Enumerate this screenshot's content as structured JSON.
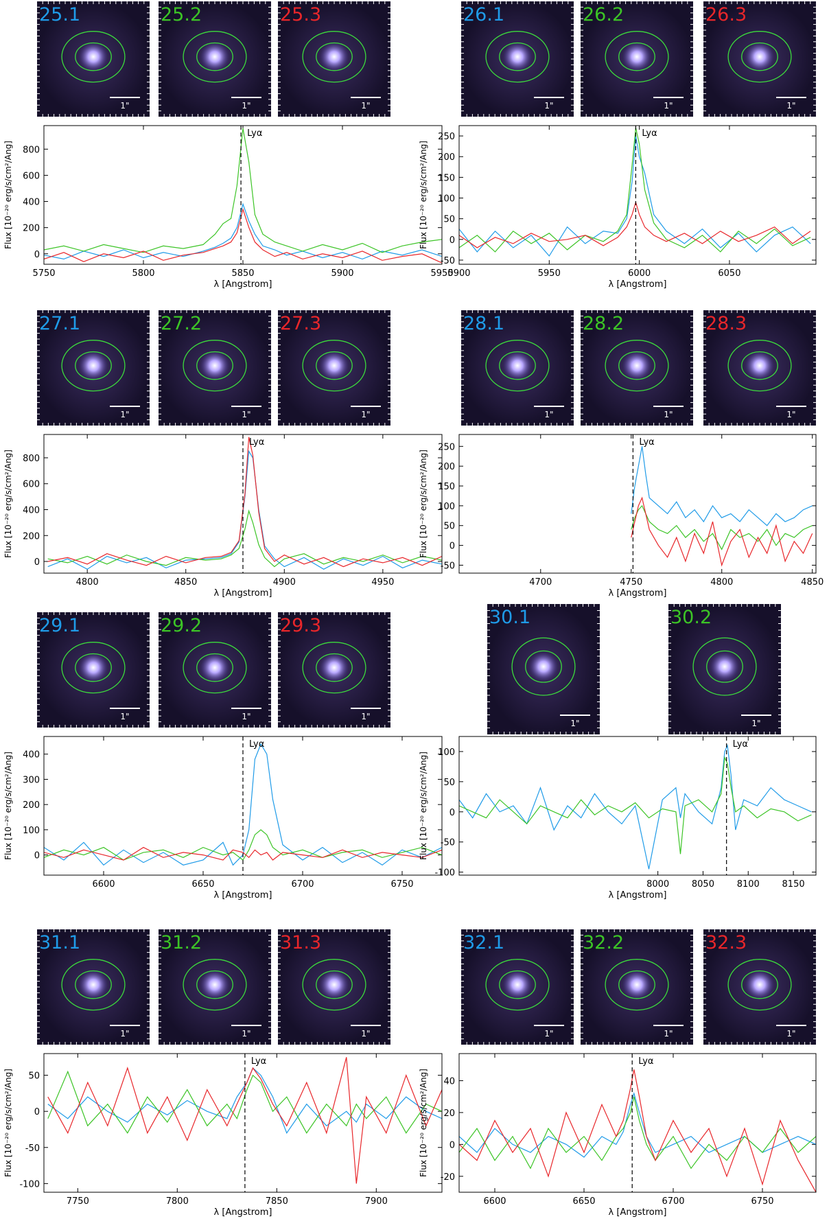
{
  "chart_data": [
    {
      "type": "line",
      "xlabel": "λ [Angstrom]",
      "ylabel": "Flux [10⁻²⁰ erg/s/cm²/Ang]",
      "scale_label": "1\"",
      "xlim": [
        5750,
        5950
      ],
      "xticks": [
        5750,
        5800,
        5850,
        5900,
        5950
      ],
      "ylim": [
        -80,
        980
      ],
      "yticks": [
        0,
        200,
        400,
        600,
        800
      ],
      "annotations": [
        {
          "text": "Lyα",
          "x": 5849
        }
      ],
      "x": [
        5750,
        5760,
        5770,
        5780,
        5790,
        5800,
        5810,
        5820,
        5830,
        5836,
        5840,
        5844,
        5847,
        5850,
        5853,
        5856,
        5860,
        5866,
        5872,
        5880,
        5890,
        5900,
        5910,
        5920,
        5930,
        5940,
        5950
      ],
      "series": [
        {
          "name": "25.1",
          "color": "#1f9be8",
          "values": [
            -10,
            -40,
            20,
            -20,
            30,
            -30,
            10,
            -20,
            20,
            50,
            80,
            120,
            200,
            380,
            250,
            150,
            60,
            30,
            -10,
            20,
            -30,
            10,
            -40,
            20,
            -10,
            30,
            -20
          ]
        },
        {
          "name": "25.2",
          "color": "#3cc426",
          "values": [
            30,
            60,
            20,
            70,
            40,
            10,
            60,
            40,
            70,
            150,
            230,
            270,
            520,
            960,
            700,
            300,
            150,
            90,
            60,
            20,
            70,
            30,
            80,
            10,
            60,
            90,
            110
          ]
        },
        {
          "name": "25.3",
          "color": "#e8262a",
          "values": [
            -40,
            10,
            -60,
            0,
            -30,
            20,
            -50,
            -10,
            10,
            40,
            60,
            90,
            160,
            340,
            200,
            90,
            30,
            -20,
            10,
            -40,
            0,
            -30,
            20,
            -50,
            -20,
            0,
            -70
          ]
        }
      ]
    },
    {
      "type": "line",
      "xlabel": "λ [Angstrom]",
      "ylabel": "Flux [10⁻²⁰ erg/s/cm²/Ang]",
      "scale_label": "1\"",
      "xlim": [
        5900,
        6098
      ],
      "xticks": [
        5900,
        5950,
        6000,
        6050
      ],
      "ylim": [
        -60,
        275
      ],
      "yticks": [
        -50,
        0,
        50,
        100,
        150,
        200,
        250
      ],
      "annotations": [
        {
          "text": "Lyα",
          "x": 5998
        }
      ],
      "x": [
        5900,
        5910,
        5920,
        5930,
        5940,
        5950,
        5960,
        5970,
        5980,
        5988,
        5993,
        5996,
        5998,
        6000,
        6003,
        6008,
        6015,
        6025,
        6035,
        6045,
        6055,
        6065,
        6075,
        6085,
        6095
      ],
      "series": [
        {
          "name": "26.1",
          "color": "#1f9be8",
          "values": [
            25,
            -30,
            20,
            -20,
            10,
            -40,
            30,
            -10,
            20,
            15,
            50,
            140,
            250,
            200,
            160,
            60,
            20,
            -10,
            25,
            -20,
            15,
            -30,
            10,
            30,
            -10
          ]
        },
        {
          "name": "26.2",
          "color": "#3cc426",
          "values": [
            -20,
            10,
            -30,
            20,
            -10,
            15,
            -25,
            10,
            -5,
            20,
            60,
            180,
            270,
            230,
            120,
            40,
            0,
            -20,
            10,
            -30,
            20,
            -10,
            25,
            -15,
            5
          ]
        },
        {
          "name": "26.3",
          "color": "#e8262a",
          "values": [
            10,
            -20,
            5,
            -10,
            15,
            -5,
            0,
            10,
            -15,
            5,
            30,
            60,
            90,
            60,
            30,
            10,
            -5,
            15,
            -10,
            20,
            -5,
            10,
            30,
            -10,
            20
          ]
        }
      ]
    },
    {
      "type": "line",
      "xlabel": "λ [Angstrom]",
      "ylabel": "Flux [10⁻²⁰ erg/s/cm²/Ang]",
      "scale_label": "1\"",
      "xlim": [
        4778,
        4980
      ],
      "xticks": [
        4800,
        4850,
        4900,
        4950
      ],
      "ylim": [
        -90,
        980
      ],
      "yticks": [
        0,
        200,
        400,
        600,
        800
      ],
      "annotations": [
        {
          "text": "Lyα",
          "x": 4879
        }
      ],
      "x": [
        4780,
        4790,
        4800,
        4810,
        4820,
        4830,
        4840,
        4850,
        4860,
        4868,
        4873,
        4877,
        4880,
        4882,
        4884,
        4887,
        4890,
        4895,
        4900,
        4910,
        4920,
        4930,
        4940,
        4950,
        4960,
        4970,
        4980
      ],
      "series": [
        {
          "name": "27.1",
          "color": "#1f9be8",
          "values": [
            -40,
            20,
            -60,
            40,
            -10,
            30,
            -50,
            10,
            20,
            30,
            60,
            150,
            500,
            850,
            800,
            400,
            120,
            20,
            -40,
            30,
            -60,
            20,
            -30,
            40,
            -50,
            10,
            -20
          ]
        },
        {
          "name": "27.2",
          "color": "#3cc426",
          "values": [
            20,
            -10,
            40,
            -20,
            50,
            0,
            -30,
            30,
            10,
            20,
            50,
            100,
            250,
            390,
            300,
            130,
            30,
            -40,
            20,
            60,
            -20,
            30,
            0,
            50,
            -10,
            40,
            10
          ]
        },
        {
          "name": "27.3",
          "color": "#e8262a",
          "values": [
            0,
            30,
            -20,
            60,
            10,
            -30,
            40,
            -10,
            30,
            40,
            70,
            160,
            520,
            960,
            820,
            380,
            100,
            0,
            50,
            -20,
            30,
            -40,
            20,
            -10,
            30,
            -30,
            40
          ]
        }
      ]
    },
    {
      "type": "line",
      "xlabel": "λ [Angstrom]",
      "ylabel": "Flux [10⁻²⁰ erg/s/cm²/Ang]",
      "scale_label": "1\"",
      "xlim": [
        4655,
        4852
      ],
      "xticks": [
        4700,
        4750,
        4800,
        4850
      ],
      "ylim": [
        -70,
        280
      ],
      "yticks": [
        -50,
        0,
        50,
        100,
        150,
        200,
        250
      ],
      "annotations": [
        {
          "text": "Lyα",
          "x": 4751
        }
      ],
      "x": [
        4750,
        4752,
        4754,
        4756,
        4758,
        4760,
        4765,
        4770,
        4775,
        4780,
        4785,
        4790,
        4795,
        4800,
        4805,
        4810,
        4815,
        4820,
        4825,
        4830,
        4835,
        4840,
        4845,
        4850
      ],
      "series": [
        {
          "name": "28.1",
          "color": "#1f9be8",
          "values": [
            80,
            150,
            200,
            250,
            180,
            120,
            100,
            80,
            110,
            70,
            90,
            60,
            100,
            70,
            80,
            60,
            90,
            70,
            50,
            80,
            60,
            70,
            90,
            100
          ]
        },
        {
          "name": "28.2",
          "color": "#3cc426",
          "values": [
            40,
            70,
            90,
            100,
            80,
            60,
            40,
            30,
            50,
            20,
            40,
            10,
            30,
            -10,
            40,
            20,
            30,
            10,
            40,
            0,
            30,
            20,
            40,
            50
          ]
        },
        {
          "name": "28.3",
          "color": "#e8262a",
          "values": [
            20,
            60,
            100,
            120,
            80,
            40,
            0,
            -30,
            20,
            -40,
            30,
            -20,
            60,
            -50,
            10,
            40,
            -30,
            20,
            -20,
            50,
            -40,
            10,
            -20,
            30
          ]
        }
      ]
    },
    {
      "type": "line",
      "xlabel": "λ [Angstrom]",
      "ylabel": "Flux [10⁻²⁰ erg/s/cm²/Ang]",
      "scale_label": "1\"",
      "xlim": [
        6570,
        6770
      ],
      "xticks": [
        6600,
        6650,
        6700,
        6750
      ],
      "ylim": [
        -80,
        470
      ],
      "yticks": [
        0,
        100,
        200,
        300,
        400
      ],
      "annotations": [
        {
          "text": "Lyα",
          "x": 6670
        }
      ],
      "x": [
        6570,
        6580,
        6590,
        6600,
        6610,
        6620,
        6630,
        6640,
        6650,
        6660,
        6665,
        6670,
        6673,
        6676,
        6679,
        6682,
        6685,
        6690,
        6700,
        6710,
        6720,
        6730,
        6740,
        6750,
        6760,
        6770
      ],
      "series": [
        {
          "name": "29.1",
          "color": "#1f9be8",
          "values": [
            30,
            -20,
            50,
            -40,
            20,
            -30,
            10,
            -40,
            -20,
            50,
            -40,
            0,
            100,
            380,
            440,
            400,
            220,
            40,
            -20,
            30,
            -30,
            10,
            -40,
            20,
            -10,
            30
          ]
        },
        {
          "name": "29.2",
          "color": "#3cc426",
          "values": [
            -10,
            20,
            0,
            30,
            -20,
            10,
            20,
            -10,
            30,
            0,
            10,
            -20,
            20,
            80,
            100,
            80,
            30,
            0,
            20,
            -10,
            10,
            20,
            -10,
            10,
            30,
            0
          ]
        },
        {
          "name": "29.3",
          "color": "#e8262a",
          "values": [
            10,
            -10,
            20,
            0,
            -20,
            30,
            -10,
            10,
            0,
            -20,
            20,
            10,
            -10,
            20,
            0,
            10,
            -20,
            10,
            0,
            -10,
            20,
            -10,
            10,
            0,
            -10,
            20
          ]
        }
      ]
    },
    {
      "type": "line",
      "xlabel": "λ [Angstrom]",
      "ylabel": "Flux [10⁻²⁰ erg/s/cm²/Ang]",
      "scale_label": "1\"",
      "xlim": [
        7780,
        8175
      ],
      "xticks": [
        8000,
        8050,
        8100,
        8150
      ],
      "ylim": [
        -105,
        125
      ],
      "yticks": [
        -100,
        -50,
        0,
        50,
        100
      ],
      "annotations": [
        {
          "text": "Lyα",
          "x": 8076
        }
      ],
      "x": [
        7780,
        7795,
        7810,
        7825,
        7840,
        7855,
        7870,
        7885,
        7900,
        7915,
        7930,
        7945,
        7960,
        7975,
        7990,
        8005,
        8020,
        8025,
        8030,
        8045,
        8060,
        8070,
        8074,
        8077,
        8081,
        8086,
        8095,
        8110,
        8125,
        8140,
        8155,
        8170
      ],
      "series": [
        {
          "name": "30.1",
          "color": "#1f9be8",
          "values": [
            20,
            -10,
            30,
            0,
            10,
            -20,
            40,
            -30,
            10,
            -10,
            30,
            0,
            -20,
            10,
            -95,
            20,
            40,
            -10,
            30,
            0,
            -20,
            40,
            100,
            110,
            60,
            -30,
            20,
            10,
            40,
            20,
            10,
            0
          ]
        },
        {
          "name": "30.2",
          "color": "#3cc426",
          "values": [
            10,
            0,
            -10,
            20,
            0,
            -20,
            10,
            0,
            -10,
            20,
            -5,
            10,
            0,
            15,
            -10,
            5,
            0,
            -70,
            10,
            20,
            0,
            30,
            90,
            80,
            40,
            0,
            10,
            -10,
            5,
            0,
            -15,
            -5
          ]
        }
      ]
    },
    {
      "type": "line",
      "xlabel": "λ [Angstrom]",
      "ylabel": "Flux [10⁻²⁰ erg/s/cm²/Ang]",
      "scale_label": "1\"",
      "xlim": [
        7733,
        7933
      ],
      "xticks": [
        7750,
        7800,
        7850,
        7900
      ],
      "ylim": [
        -112,
        80
      ],
      "yticks": [
        -100,
        -50,
        0,
        50
      ],
      "annotations": [
        {
          "text": "Lyα",
          "x": 7834
        }
      ],
      "x": [
        7735,
        7745,
        7755,
        7765,
        7775,
        7785,
        7795,
        7805,
        7815,
        7825,
        7830,
        7835,
        7838,
        7842,
        7848,
        7855,
        7865,
        7875,
        7885,
        7890,
        7895,
        7905,
        7915,
        7925,
        7933
      ],
      "series": [
        {
          "name": "31.1",
          "color": "#1f9be8",
          "values": [
            10,
            -10,
            20,
            0,
            -15,
            10,
            -5,
            15,
            0,
            -10,
            20,
            40,
            60,
            50,
            20,
            -30,
            10,
            -20,
            0,
            -15,
            10,
            -10,
            20,
            0,
            -10
          ]
        },
        {
          "name": "31.2",
          "color": "#3cc426",
          "values": [
            -10,
            55,
            -20,
            10,
            -30,
            20,
            -15,
            30,
            -20,
            10,
            -10,
            30,
            50,
            40,
            0,
            20,
            -30,
            10,
            -20,
            10,
            -10,
            20,
            -30,
            10,
            0
          ]
        },
        {
          "name": "31.3",
          "color": "#e8262a",
          "values": [
            20,
            -30,
            40,
            -20,
            60,
            -30,
            20,
            -40,
            30,
            -20,
            10,
            40,
            60,
            45,
            10,
            -20,
            40,
            -30,
            75,
            -100,
            20,
            -30,
            50,
            -20,
            30
          ]
        }
      ]
    },
    {
      "type": "line",
      "xlabel": "λ [Angstrom]",
      "ylabel": "Flux [10⁻²⁰ erg/s/cm²/Ang]",
      "scale_label": "1\"",
      "xlim": [
        6580,
        6780
      ],
      "xticks": [
        6600,
        6650,
        6700,
        6750
      ],
      "ylim": [
        -30,
        57
      ],
      "yticks": [
        -20,
        0,
        20,
        40
      ],
      "annotations": [
        {
          "text": "Lyα",
          "x": 6677
        }
      ],
      "x": [
        6580,
        6590,
        6600,
        6610,
        6620,
        6630,
        6640,
        6650,
        6660,
        6668,
        6672,
        6676,
        6678,
        6681,
        6685,
        6690,
        6700,
        6710,
        6720,
        6730,
        6740,
        6750,
        6760,
        6770,
        6780
      ],
      "series": [
        {
          "name": "32.1",
          "color": "#1f9be8",
          "values": [
            5,
            -5,
            10,
            0,
            -5,
            5,
            0,
            -8,
            5,
            0,
            8,
            25,
            32,
            20,
            5,
            -5,
            0,
            5,
            -5,
            0,
            5,
            -5,
            0,
            5,
            0
          ]
        },
        {
          "name": "32.2",
          "color": "#3cc426",
          "values": [
            -5,
            10,
            -10,
            5,
            -15,
            10,
            -5,
            5,
            -10,
            5,
            10,
            20,
            30,
            15,
            0,
            -10,
            5,
            -15,
            0,
            -10,
            5,
            -5,
            10,
            -5,
            5
          ]
        },
        {
          "name": "32.3",
          "color": "#e8262a",
          "values": [
            0,
            -10,
            15,
            -5,
            10,
            -20,
            20,
            -5,
            25,
            5,
            15,
            35,
            47,
            30,
            5,
            -10,
            15,
            -5,
            10,
            -20,
            10,
            -25,
            15,
            -10,
            -30
          ]
        }
      ]
    }
  ]
}
